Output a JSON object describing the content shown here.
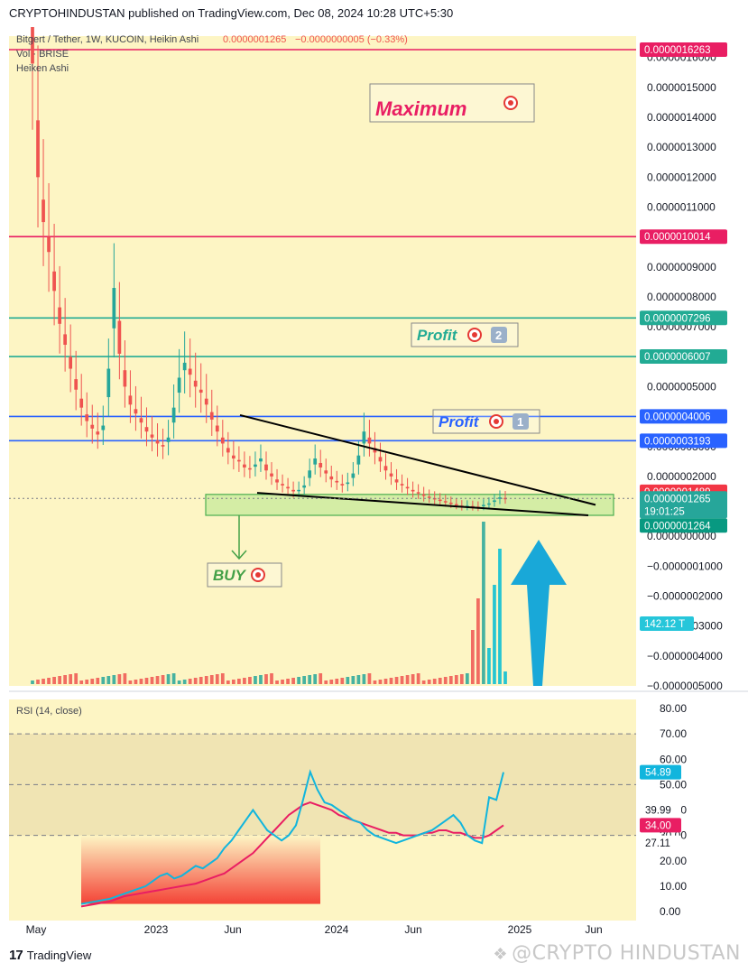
{
  "header": {
    "publish_line": "CRYPTOHINDUSTAN published on TradingView.com, Dec 08, 2024 10:28 UTC+5:30"
  },
  "legend": {
    "symbol_line": "Bitgert / Tether, 1W, KUCOIN, Heikin Ashi",
    "last_value": "0.0000001265",
    "change": "−0.0000000005 (−0.33%)",
    "vol_line": "Vol · BRISE",
    "style_line": "Heiken Ashi"
  },
  "annotations": {
    "maximum": "Maximum",
    "profit2": "Profit",
    "profit2_badge": "2",
    "profit1": "Profit",
    "profit1_badge": "1",
    "buy": "BUY"
  },
  "colors": {
    "background": "#fdf5c4",
    "level_red": "#e91e63",
    "level_teal": "#22ab94",
    "level_blue": "#2962ff",
    "trendline": "#000000",
    "zone_fill": "#cdeba0",
    "zone_border": "#4caf50",
    "arrow": "#19a8d8",
    "rsi_line": "#11b5dd",
    "rsi_ma": "#e91e63",
    "candle_up": "#26a69a",
    "candle_down": "#ef5350",
    "volume_spike": "#00bcd4"
  },
  "icons": {
    "target": "target-icon",
    "arrow_up": "arrow-up-icon",
    "arrow_down": "arrow-down-icon",
    "tradingview": "tradingview-logo-icon",
    "watermark": "diamond-icon"
  },
  "price_axis": {
    "ticks": [
      "0.0000016000",
      "0.0000015000",
      "0.0000014000",
      "0.0000013000",
      "0.0000012000",
      "0.0000011000",
      "0.0000010000",
      "0.0000009000",
      "0.0000008000",
      "0.0000007000",
      "0.0000006000",
      "0.0000005000",
      "0.0000004000",
      "0.0000003000",
      "0.0000002000",
      "0.0000001000",
      "0.0000000000",
      "−0.0000001000",
      "−0.0000002000",
      "−0.0000003000",
      "−0.0000004000",
      "−0.0000005000"
    ],
    "levels": [
      {
        "label": "0.0000016263",
        "value": 1.6263e-06,
        "color": "#e91e63"
      },
      {
        "label": "0.0000010014",
        "value": 1.0014e-06,
        "color": "#e91e63"
      },
      {
        "label": "0.0000007296",
        "value": 7.296e-07,
        "color": "#22ab94"
      },
      {
        "label": "0.0000006007",
        "value": 6.007e-07,
        "color": "#22ab94"
      },
      {
        "label": "0.0000004006",
        "value": 4.006e-07,
        "color": "#2962ff"
      },
      {
        "label": "0.0000003193",
        "value": 3.193e-07,
        "color": "#2962ff"
      }
    ],
    "current": {
      "high": "0.0000001489",
      "price": "0.0000001265",
      "countdown": "19:01:25",
      "low": "0.0000001264"
    },
    "volume_label": "142.12 T"
  },
  "x_axis": {
    "labels": [
      "May",
      "2023",
      "Jun",
      "2024",
      "Jun",
      "2025",
      "Jun"
    ]
  },
  "rsi": {
    "title": "RSI (14, close)",
    "ticks": [
      "80.00",
      "70.00",
      "60.00",
      "50.00",
      "40.00",
      "30.00",
      "20.00",
      "10.00",
      "0.00"
    ],
    "current_labels": {
      "rsi": "54.89",
      "ma": "34.00",
      "upper": "39.99",
      "lower": "27.11"
    }
  },
  "footer": {
    "brand": "TradingView",
    "watermark": "@CRYPTO HINDUSTAN"
  },
  "chart_data": [
    {
      "type": "candlestick",
      "title": "Bitgert / Tether, 1W, KUCOIN, Heikin Ashi",
      "x_labels": [
        "May",
        "2023",
        "Jun",
        "2024",
        "Jun",
        "2025",
        "Jun"
      ],
      "ylim": [
        -5e-07,
        1.6263e-06
      ],
      "horizontal_levels": [
        1.6263e-06,
        1.0014e-06,
        7.296e-07,
        6.007e-07,
        4.006e-07,
        3.193e-07
      ],
      "buy_zone": [
        7e-08,
        1.4e-07
      ],
      "last_price": 1.265e-07,
      "close_series": [
        1.58e-06,
        1.2e-06,
        1.05e-06,
        9.5e-07,
        8.2e-07,
        7.1e-07,
        6.4e-07,
        5.6e-07,
        4.9e-07,
        4.3e-07,
        3.85e-07,
        3.6e-07,
        3.4e-07,
        3.7e-07,
        5.6e-07,
        8.3e-07,
        6.1e-07,
        5e-07,
        4.4e-07,
        4.1e-07,
        3.8e-07,
        3.5e-07,
        3.3e-07,
        3.1e-07,
        3e-07,
        3.3e-07,
        4.3e-07,
        5.3e-07,
        5.8e-07,
        5.4e-07,
        5e-07,
        4.8e-07,
        4.4e-07,
        3.9e-07,
        3.5e-07,
        3.1e-07,
        2.8e-07,
        2.6e-07,
        2.5e-07,
        2.3e-07,
        2.25e-07,
        2.4e-07,
        2.6e-07,
        2.2e-07,
        2e-07,
        1.8e-07,
        1.7e-07,
        1.6e-07,
        1.5e-07,
        1.55e-07,
        1.7e-07,
        2.2e-07,
        2.6e-07,
        2.3e-07,
        2.1e-07,
        1.9e-07,
        1.8e-07,
        1.7e-07,
        1.8e-07,
        2.1e-07,
        2.7e-07,
        3.5e-07,
        3.1e-07,
        2.8e-07,
        2.5e-07,
        2.2e-07,
        2e-07,
        1.8e-07,
        1.7e-07,
        1.6e-07,
        1.5e-07,
        1.45e-07,
        1.35e-07,
        1.3e-07,
        1.25e-07,
        1.2e-07,
        1.15e-07,
        1.1e-07,
        1.05e-07,
        1e-07,
        1.02e-07,
        1e-07,
        9.8e-08,
        1.05e-07,
        1.1e-07,
        1.2e-07,
        1.3e-07,
        1.265e-07
      ]
    },
    {
      "type": "line",
      "title": "RSI (14, close)",
      "ylim": [
        0,
        80
      ],
      "series": [
        {
          "values": [
            3,
            3.5,
            4,
            4.5,
            5,
            6,
            7,
            8,
            9,
            10,
            12,
            14,
            15,
            13,
            14,
            16,
            18,
            17,
            19,
            21,
            25,
            28,
            32,
            36,
            40,
            36,
            32,
            30,
            28,
            30,
            34,
            44,
            55,
            48,
            43,
            42,
            40,
            38,
            36,
            35,
            32,
            30,
            29,
            28,
            27,
            28,
            29,
            30,
            31,
            32,
            34,
            36,
            38,
            35,
            30,
            28,
            27,
            45,
            44,
            54.89
          ]
        },
        {
          "values": [
            2,
            2.5,
            3,
            3.5,
            4,
            5,
            6,
            6.5,
            7,
            7.5,
            8,
            8.5,
            9,
            9.5,
            10,
            10.5,
            11,
            12,
            13,
            14,
            15,
            17,
            19,
            21,
            23,
            26,
            29,
            32,
            35,
            38,
            40,
            42,
            43,
            42,
            41,
            40,
            38,
            37,
            36,
            35,
            34,
            33,
            32,
            31,
            31,
            30,
            30,
            30,
            31,
            31,
            32,
            32,
            31,
            31,
            30,
            29,
            29,
            30,
            32,
            34.0
          ]
        }
      ]
    }
  ]
}
